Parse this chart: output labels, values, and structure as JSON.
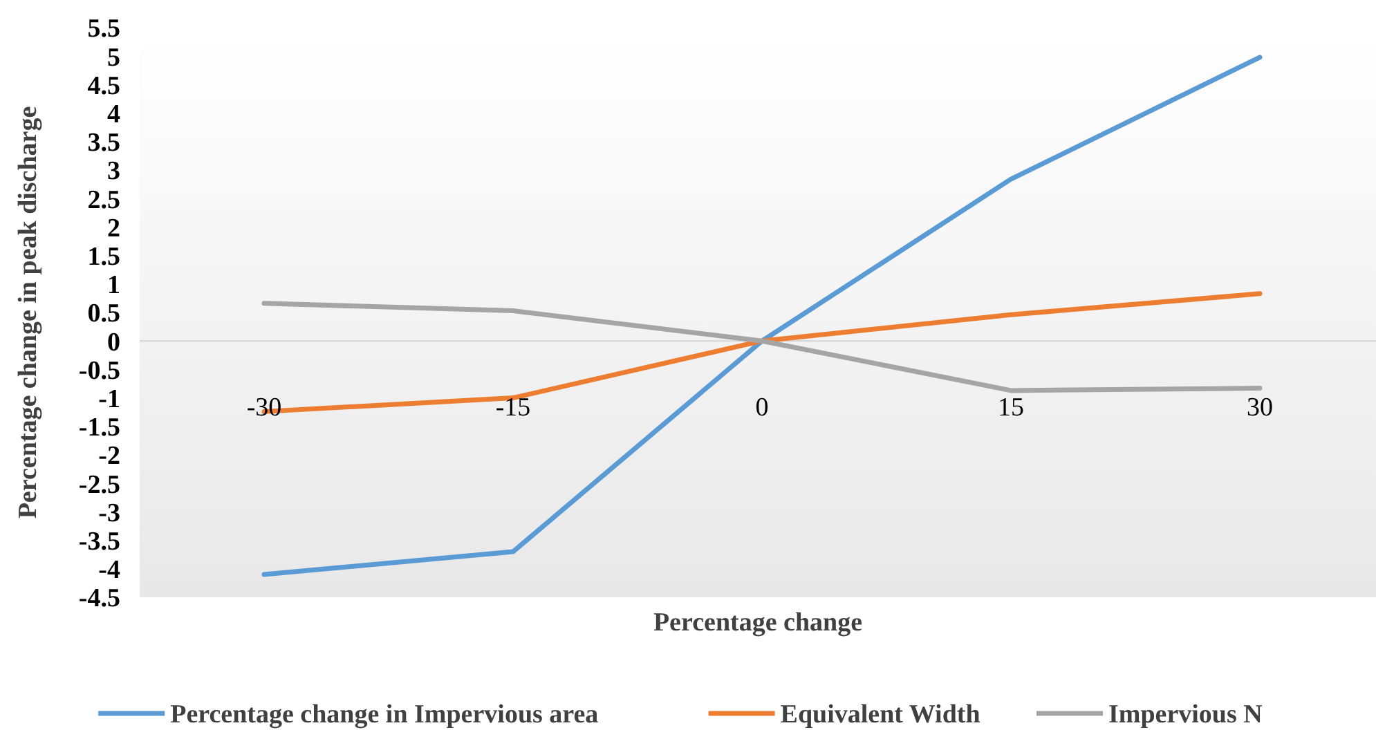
{
  "chart_data": {
    "type": "line",
    "xlabel": "Percentage change",
    "ylabel": "Percentage change in peak discharge",
    "categories": [
      "-30",
      "-15",
      "0",
      "15",
      "30"
    ],
    "series": [
      {
        "name": "Percentage change in Impervious area",
        "color": "#5b9bd5",
        "values": [
          -4.1,
          -3.7,
          0,
          2.84,
          4.98
        ]
      },
      {
        "name": "Equivalent Width",
        "color": "#ed7d31",
        "values": [
          -1.24,
          -1.0,
          0,
          0.46,
          0.83
        ]
      },
      {
        "name": "Impervious N",
        "color": "#a5a5a5",
        "values": [
          0.66,
          0.53,
          0,
          -0.87,
          -0.83
        ]
      }
    ],
    "ylim": [
      -4.5,
      5.5
    ],
    "yticks": [
      -4.5,
      -4,
      -3.5,
      -3,
      -2.5,
      -2,
      -1.5,
      -1,
      -0.5,
      0,
      0.5,
      1,
      1.5,
      2,
      2.5,
      3,
      3.5,
      4,
      4.5,
      5,
      5.5
    ],
    "grid": false,
    "legend": "bottom",
    "marker": "none",
    "line_style": "solid"
  }
}
